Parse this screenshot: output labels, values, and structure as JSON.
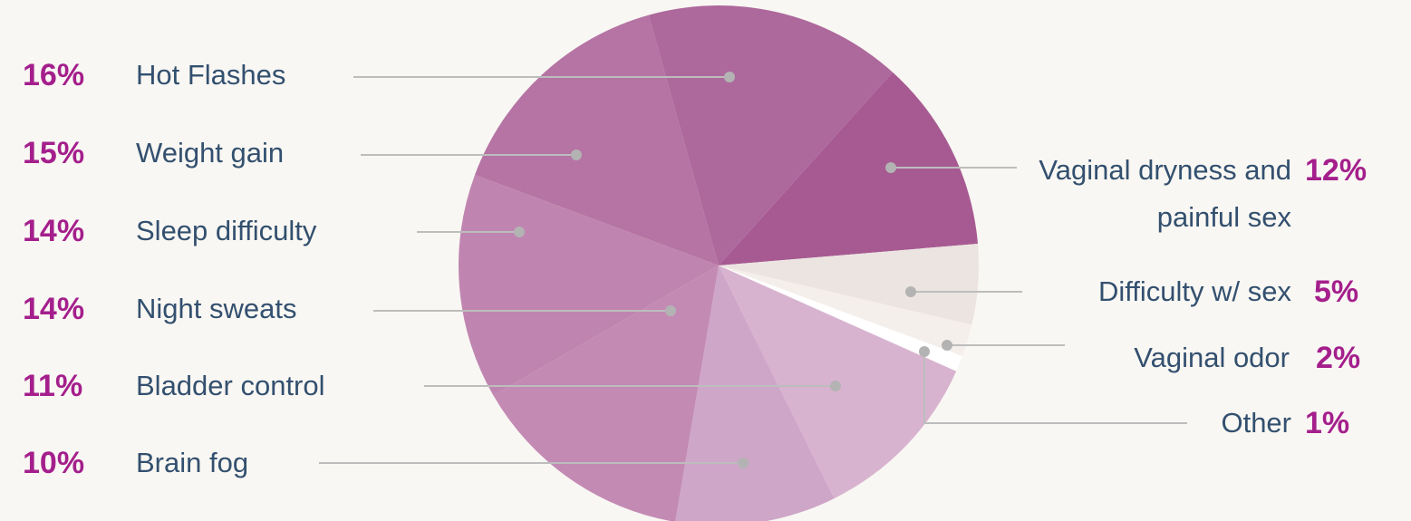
{
  "chart_data": {
    "type": "pie",
    "categories": [
      "Vaginal dryness and painful sex",
      "Difficulty w/ sex",
      "Vaginal odor",
      "Other",
      "Bladder control",
      "Brain fog",
      "Night sweats",
      "Sleep difficulty",
      "Weight gain",
      "Hot Flashes"
    ],
    "values": [
      12,
      5,
      2,
      1,
      11,
      10,
      14,
      14,
      15,
      16
    ],
    "value_labels": [
      "12%",
      "5%",
      "2%",
      "1%",
      "11%",
      "10%",
      "14%",
      "14%",
      "15%",
      "16%"
    ],
    "colors": [
      "#a75a92",
      "#ebe4e1",
      "#f5efec",
      "#ffffff",
      "#d8b3cf",
      "#cea6c8",
      "#c38ab4",
      "#bf85b0",
      "#b574a4",
      "#ad689c"
    ]
  }
}
